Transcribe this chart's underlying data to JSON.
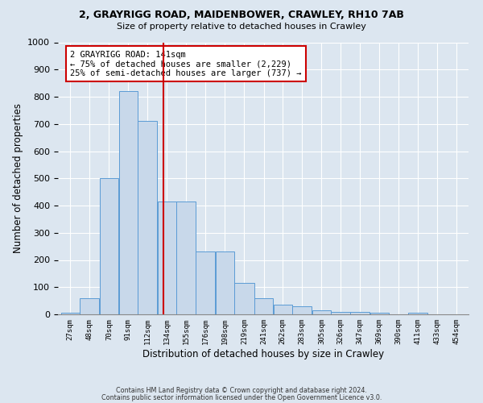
{
  "title1": "2, GRAYRIGG ROAD, MAIDENBOWER, CRAWLEY, RH10 7AB",
  "title2": "Size of property relative to detached houses in Crawley",
  "xlabel": "Distribution of detached houses by size in Crawley",
  "ylabel": "Number of detached properties",
  "footer1": "Contains HM Land Registry data © Crown copyright and database right 2024.",
  "footer2": "Contains public sector information licensed under the Open Government Licence v3.0.",
  "annotation_line1": "2 GRAYRIGG ROAD: 141sqm",
  "annotation_line2": "← 75% of detached houses are smaller (2,229)",
  "annotation_line3": "25% of semi-detached houses are larger (737) →",
  "property_size": 141,
  "bar_labels": [
    "27sqm",
    "48sqm",
    "70sqm",
    "91sqm",
    "112sqm",
    "134sqm",
    "155sqm",
    "176sqm",
    "198sqm",
    "219sqm",
    "241sqm",
    "262sqm",
    "283sqm",
    "305sqm",
    "326sqm",
    "347sqm",
    "369sqm",
    "390sqm",
    "411sqm",
    "433sqm",
    "454sqm"
  ],
  "bar_left_edges": [
    27,
    48,
    70,
    91,
    112,
    134,
    155,
    176,
    198,
    219,
    241,
    262,
    283,
    305,
    326,
    347,
    369,
    390,
    411,
    433,
    454
  ],
  "bar_widths": [
    21,
    22,
    21,
    21,
    22,
    21,
    21,
    22,
    21,
    22,
    21,
    21,
    22,
    21,
    21,
    22,
    21,
    21,
    22,
    21,
    21
  ],
  "bar_values": [
    5,
    60,
    500,
    820,
    710,
    415,
    415,
    230,
    230,
    115,
    60,
    35,
    30,
    15,
    10,
    10,
    5,
    0,
    5,
    0,
    0
  ],
  "bar_color": "#c8d8ea",
  "bar_edge_color": "#5b9bd5",
  "vline_color": "#cc0000",
  "vline_x": 141,
  "annotation_box_color": "#cc0000",
  "background_color": "#dce6f0",
  "plot_bg_color": "#dce6f0",
  "grid_color": "#ffffff",
  "ylim": [
    0,
    1000
  ],
  "yticks": [
    0,
    100,
    200,
    300,
    400,
    500,
    600,
    700,
    800,
    900,
    1000
  ]
}
